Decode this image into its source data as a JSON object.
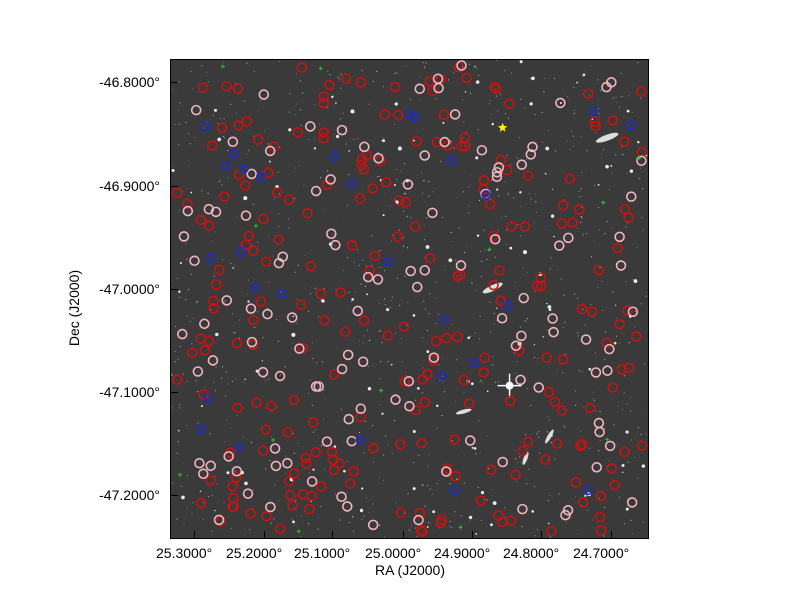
{
  "axes": {
    "xlabel": "RA (J2000)",
    "ylabel": "Dec (J2000)",
    "xticks": [
      "25.3000°",
      "25.2000°",
      "25.1000°",
      "25.0000°",
      "24.9000°",
      "24.8000°",
      "24.7000°"
    ],
    "yticks": [
      "-46.8000°",
      "-46.9000°",
      "-47.0000°",
      "-47.1000°",
      "-47.2000°"
    ]
  },
  "colors": {
    "background": "#3a3a3a",
    "circle_red": "#cc1111",
    "circle_pink": "#f2b6c0",
    "circle_blue": "#1a2bd6",
    "marker_yellow_star": "#ffee00",
    "marker_green_cross": "#22cc22"
  },
  "legend": []
}
